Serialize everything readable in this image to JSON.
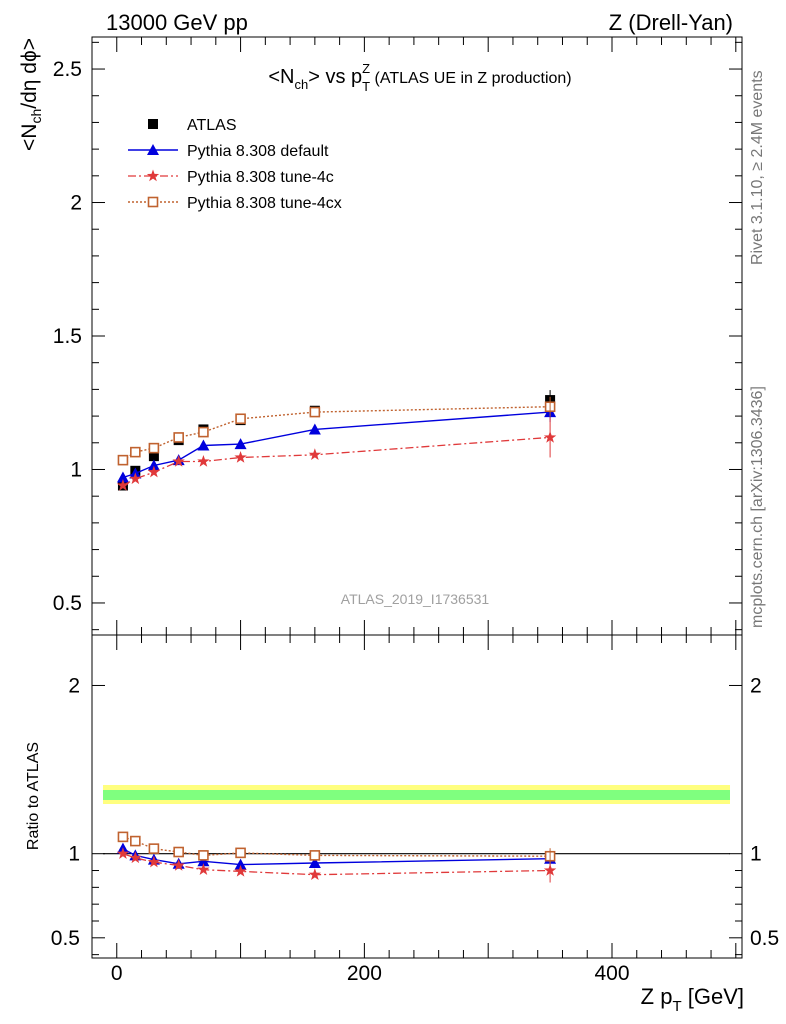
{
  "header": {
    "left": "13000 GeV pp",
    "right": "Z (Drell-Yan)"
  },
  "side_labels": {
    "rivet": "Rivet 3.1.10, ≥ 2.4M events",
    "mcplots": "mcplots.cern.ch [arXiv:1306.3436]"
  },
  "analysis_id": "ATLAS_2019_I1736531",
  "colors": {
    "atlas": "#000000",
    "default": "#0000dd",
    "tune4c": "#e0393a",
    "tune4cx": "#c0622f",
    "band_inner": "#7fff7f",
    "band_outer": "#ffff7f"
  },
  "chart_data": [
    {
      "type": "line",
      "title_parts": {
        "pre": "<N",
        "sub1": "ch",
        "mid": "> vs p",
        "sub2": "T",
        "sup2": "Z",
        "post": " (ATLAS UE in Z production)"
      },
      "ylabel_parts": {
        "pre": "<N",
        "sub1": "ch",
        "post": "/dη dϕ>"
      },
      "xlim": [
        -20,
        505
      ],
      "ylim": [
        0.38,
        2.62
      ],
      "yticks": [
        0.5,
        1,
        1.5,
        2,
        2.5
      ],
      "ytick_labels": [
        "0.5",
        "1",
        "1.5",
        "2",
        "2.5"
      ],
      "legend_position": "top-left",
      "x": [
        5,
        15,
        30,
        50,
        70,
        100,
        160,
        350
      ],
      "series": [
        {
          "name": "ATLAS",
          "key": "atlas",
          "marker": "square",
          "values": [
            0.94,
            0.995,
            1.05,
            1.11,
            1.15,
            1.185,
            1.22,
            1.26
          ]
        },
        {
          "name": "Pythia 8.308 default",
          "key": "default",
          "marker": "triangle",
          "values": [
            0.97,
            0.985,
            1.015,
            1.035,
            1.09,
            1.095,
            1.15,
            1.215
          ]
        },
        {
          "name": "Pythia 8.308 tune-4c",
          "key": "tune4c",
          "marker": "star",
          "values": [
            0.94,
            0.965,
            0.99,
            1.03,
            1.03,
            1.045,
            1.055,
            1.12
          ]
        },
        {
          "name": "Pythia 8.308 tune-4cx",
          "key": "tune4cx",
          "marker": "opensquare",
          "values": [
            1.035,
            1.065,
            1.08,
            1.12,
            1.14,
            1.19,
            1.215,
            1.235
          ]
        }
      ]
    },
    {
      "type": "line",
      "ylabel": "Ratio to ATLAS",
      "xlabel_parts": {
        "pre": "Z p",
        "sub": "T",
        "post": " [GeV]"
      },
      "xlim": [
        -20,
        505
      ],
      "ylim": [
        0.38,
        2.3
      ],
      "yticks": [
        0.5,
        1,
        2
      ],
      "ytick_labels": [
        "0.5",
        "1",
        "2"
      ],
      "xticks": [
        0,
        200,
        400
      ],
      "xtick_labels": [
        "0",
        "200",
        "400"
      ],
      "x": [
        5,
        15,
        30,
        50,
        70,
        100,
        160,
        350
      ],
      "series": [
        {
          "name": "Pythia 8.308 default",
          "key": "default",
          "marker": "triangle",
          "values": [
            1.03,
            0.99,
            0.965,
            0.94,
            0.955,
            0.935,
            0.945,
            0.97
          ]
        },
        {
          "name": "Pythia 8.308 tune-4c",
          "key": "tune4c",
          "marker": "star",
          "values": [
            1.0,
            0.975,
            0.95,
            0.93,
            0.905,
            0.895,
            0.875,
            0.9
          ]
        },
        {
          "name": "Pythia 8.308 tune-4cx",
          "key": "tune4cx",
          "marker": "opensquare",
          "values": [
            1.1,
            1.075,
            1.03,
            1.01,
            0.99,
            1.005,
            0.99,
            0.985
          ]
        }
      ]
    }
  ]
}
